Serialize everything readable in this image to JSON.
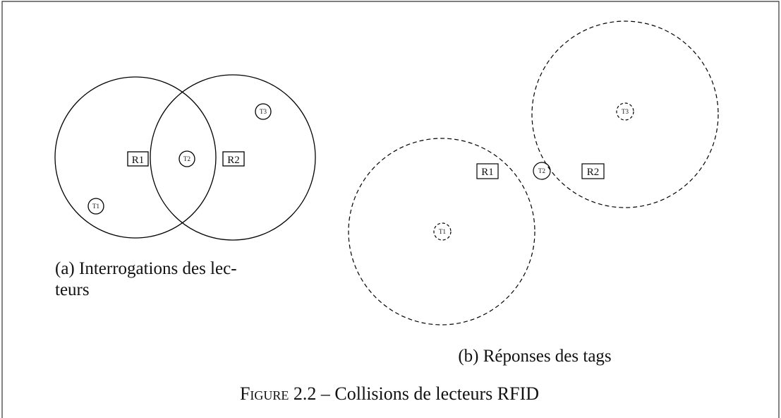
{
  "figure": {
    "subfigures": [
      {
        "caption_lines": [
          "(a) Interrogations des lec-",
          "teurs"
        ],
        "readers": [
          "R1",
          "R2"
        ],
        "tags": [
          "T1",
          "T2",
          "T3"
        ]
      },
      {
        "caption_lines": [
          "(b) Réponses des tags"
        ],
        "readers": [
          "R1",
          "R2"
        ],
        "tags": [
          "T1",
          "T2",
          "T3"
        ]
      }
    ],
    "caption_prefix": "Figure 2.2",
    "caption_text": "– Collisions de lecteurs RFID"
  }
}
